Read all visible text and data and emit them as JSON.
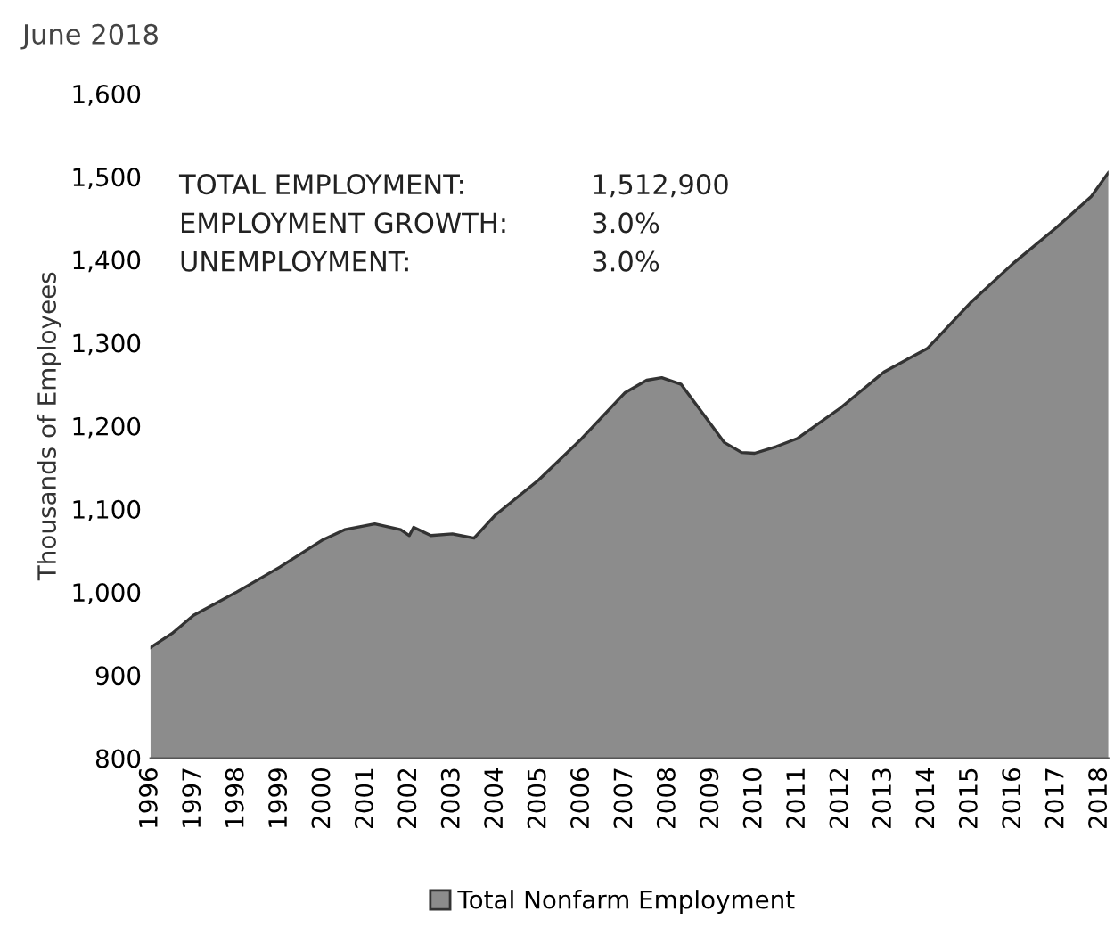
{
  "chart_data": {
    "type": "area",
    "title": "June 2018",
    "ylabel": "Thousands of Employees",
    "x": [
      1996.0,
      1996.5,
      1997.0,
      1998.0,
      1999.0,
      2000.0,
      2000.5,
      2001.2,
      2001.8,
      2002.0,
      2002.1,
      2002.5,
      2003.0,
      2003.5,
      2004.0,
      2005.0,
      2006.0,
      2007.0,
      2007.5,
      2007.85,
      2008.3,
      2008.8,
      2009.3,
      2009.7,
      2010.0,
      2010.5,
      2011.0,
      2012.0,
      2013.0,
      2014.0,
      2015.0,
      2016.0,
      2017.0,
      2017.8,
      2018.2
    ],
    "series": [
      {
        "name": "Total Nonfarm Employment",
        "color": "#8c8c8c",
        "values": [
          933,
          950,
          972,
          1000,
          1030,
          1063,
          1075,
          1082,
          1075,
          1068,
          1078,
          1068,
          1070,
          1065,
          1093,
          1135,
          1185,
          1240,
          1255,
          1258,
          1250,
          1215,
          1180,
          1168,
          1167,
          1175,
          1185,
          1222,
          1265,
          1293,
          1348,
          1396,
          1439,
          1476,
          1505
        ]
      }
    ],
    "xlim": [
      1996.0,
      2018.2
    ],
    "xticks": [
      1996,
      1997,
      1998,
      1999,
      2000,
      2001,
      2002,
      2003,
      2004,
      2005,
      2006,
      2007,
      2008,
      2009,
      2010,
      2011,
      2012,
      2013,
      2014,
      2015,
      2016,
      2017,
      2018
    ],
    "ylim": [
      800,
      1600
    ],
    "yticks": [
      {
        "value": 800,
        "label": "800"
      },
      {
        "value": 900,
        "label": "900"
      },
      {
        "value": 1000,
        "label": "1,000"
      },
      {
        "value": 1100,
        "label": "1,100"
      },
      {
        "value": 1200,
        "label": "1,200"
      },
      {
        "value": 1300,
        "label": "1,300"
      },
      {
        "value": 1400,
        "label": "1,400"
      },
      {
        "value": 1500,
        "label": "1,500"
      },
      {
        "value": 1600,
        "label": "1,600"
      }
    ],
    "annotations": [
      "TOTAL EMPLOYMENT:",
      "1,512,900",
      "EMPLOYMENT GROWTH:",
      "3.0%",
      "UNEMPLOYMENT:",
      "3.0%"
    ],
    "legend": "bottom",
    "grid": false
  }
}
